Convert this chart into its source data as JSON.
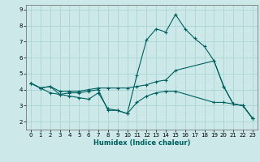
{
  "xlabel": "Humidex (Indice chaleur)",
  "background_color": "#cce8e8",
  "grid_color": "#aad4d4",
  "line_color": "#006060",
  "xlim": [
    -0.5,
    23.5
  ],
  "ylim": [
    1.5,
    9.3
  ],
  "xticks": [
    0,
    1,
    2,
    3,
    4,
    5,
    6,
    7,
    8,
    9,
    10,
    11,
    12,
    13,
    14,
    15,
    16,
    17,
    18,
    19,
    20,
    21,
    22,
    23
  ],
  "yticks": [
    2,
    3,
    4,
    5,
    6,
    7,
    8,
    9
  ],
  "series": [
    {
      "x": [
        0,
        1,
        2,
        3,
        4,
        5,
        6,
        7,
        8,
        9,
        10,
        11,
        12,
        13,
        14,
        15,
        16,
        17,
        18,
        19,
        20,
        21,
        22,
        23
      ],
      "y": [
        4.4,
        4.1,
        4.2,
        3.7,
        3.8,
        3.8,
        3.9,
        4.0,
        2.7,
        2.7,
        2.5,
        4.9,
        7.1,
        7.8,
        7.6,
        8.7,
        7.8,
        7.2,
        6.7,
        5.8,
        4.2,
        3.1,
        3.0,
        2.2
      ]
    },
    {
      "x": [
        0,
        1,
        2,
        3,
        4,
        5,
        6,
        7,
        8,
        9,
        10,
        11,
        12,
        13,
        14,
        15,
        19,
        20,
        21,
        22,
        23
      ],
      "y": [
        4.4,
        4.1,
        4.2,
        3.9,
        3.9,
        3.9,
        4.0,
        4.1,
        4.1,
        4.1,
        4.1,
        4.2,
        4.3,
        4.5,
        4.6,
        5.2,
        5.8,
        4.2,
        3.1,
        3.0,
        2.2
      ]
    },
    {
      "x": [
        0,
        1,
        2,
        3,
        4,
        5,
        6,
        7,
        8,
        9,
        10,
        11,
        12,
        13,
        14,
        15,
        19,
        20,
        21,
        22,
        23
      ],
      "y": [
        4.4,
        4.1,
        3.8,
        3.7,
        3.6,
        3.5,
        3.4,
        3.8,
        2.8,
        2.7,
        2.5,
        3.2,
        3.6,
        3.8,
        3.9,
        3.9,
        3.2,
        3.2,
        3.1,
        3.0,
        2.2
      ]
    }
  ]
}
